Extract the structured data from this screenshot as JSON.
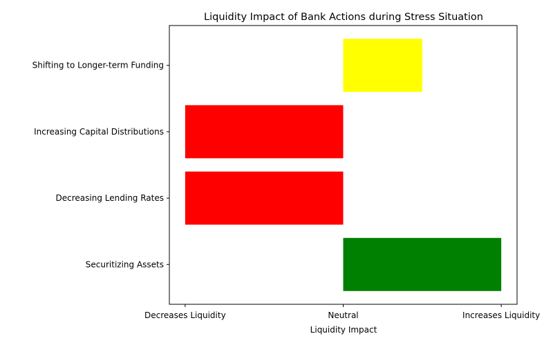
{
  "chart_data": {
    "type": "bar",
    "orientation": "horizontal",
    "title": "Liquidity Impact of Bank Actions during Stress Situation",
    "xlabel": "Liquidity Impact",
    "ylabel": "",
    "xlim": [
      -1.1,
      1.1
    ],
    "x_ticks": [
      {
        "value": -1,
        "label": "Decreases Liquidity"
      },
      {
        "value": 0,
        "label": "Neutral"
      },
      {
        "value": 1,
        "label": "Increases Liquidity"
      }
    ],
    "categories": [
      "Securitizing Assets",
      "Decreasing Lending Rates",
      "Increasing Capital Distributions",
      "Shifting to Longer-term Funding"
    ],
    "values": [
      1,
      -1,
      -1,
      0.5
    ],
    "colors": [
      "#008000",
      "#ff0000",
      "#ff0000",
      "#ffff00"
    ],
    "grid": false,
    "legend": "none"
  }
}
